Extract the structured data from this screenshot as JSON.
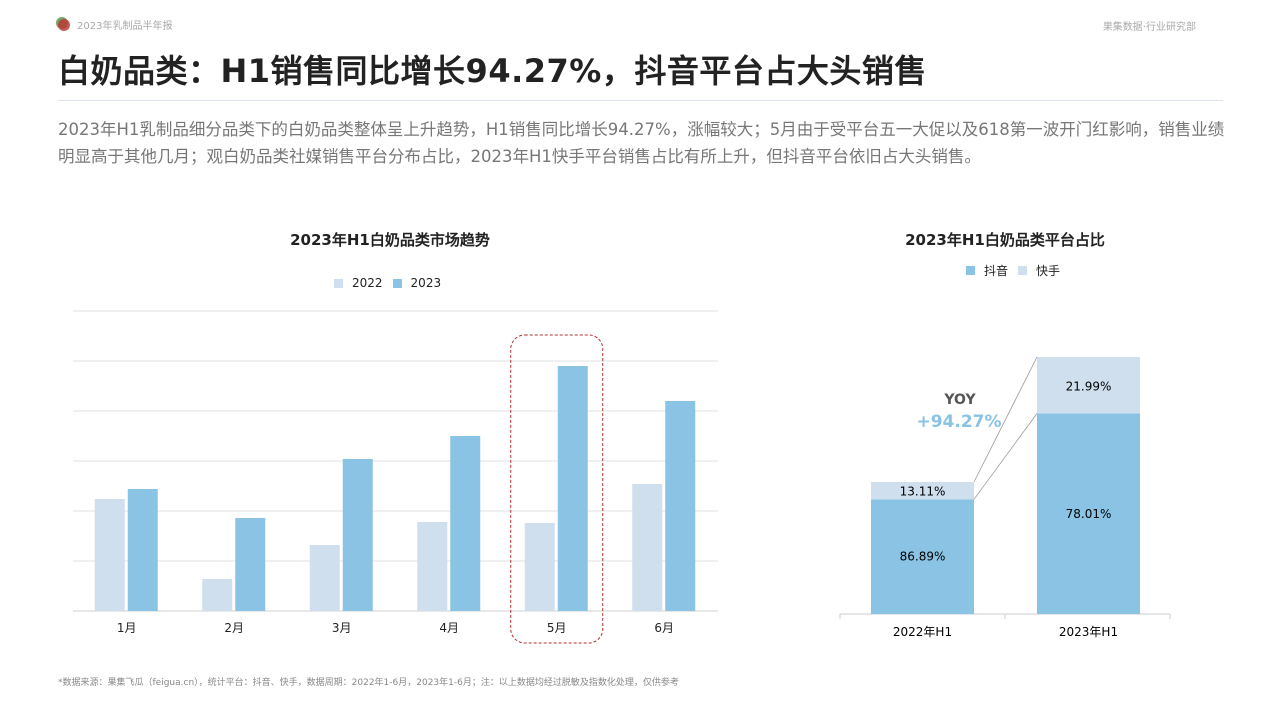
{
  "header": {
    "report": "2023年乳制品半年报",
    "source": "果集数据·行业研究部"
  },
  "title": "白奶品类：H1销售同比增长94.27%，抖音平台占大头销售",
  "description": "2023年H1乳制品细分品类下的白奶品类整体呈上升趋势，H1销售同比增长94.27%，涨幅较大；5月由于受平台五一大促以及618第一波开门红影响，销售业绩明显高于其他几月；观白奶品类社媒销售平台分布占比，2023年H1快手平台销售占比有所上升，但抖音平台依旧占大头销售。",
  "footnote": "*数据来源：果集飞瓜（feigua.cn），统计平台：抖音、快手，数据周期：2022年1-6月，2023年1-6月；注：以上数据均经过脱敏及指数化处理，仅供参考",
  "colors": {
    "light": "#cfdfee",
    "dark": "#8ac3e4",
    "highlight": "#b03030",
    "yoy": "#8ac3e4"
  },
  "chart_data": [
    {
      "type": "bar",
      "title": "2023年H1白奶品类市场趋势",
      "categories": [
        "1月",
        "2月",
        "3月",
        "4月",
        "5月",
        "6月"
      ],
      "series": [
        {
          "name": "2022",
          "values": [
            2.24,
            0.64,
            1.32,
            1.78,
            1.76,
            2.54
          ]
        },
        {
          "name": "2023",
          "values": [
            2.44,
            1.86,
            3.04,
            3.5,
            4.9,
            4.2
          ]
        }
      ],
      "ylim": [
        0,
        6
      ],
      "grid": true,
      "legend": "top",
      "highlight": "5月",
      "y_tick_labels": false
    },
    {
      "type": "bar",
      "stacked": true,
      "title": "2023年H1白奶品类平台占比",
      "categories": [
        "2022年H1",
        "2023年H1"
      ],
      "series": [
        {
          "name": "抖音",
          "values": [
            86.89,
            78.01
          ],
          "labels": [
            "86.89%",
            "78.01%"
          ]
        },
        {
          "name": "快手",
          "values": [
            13.11,
            21.99
          ],
          "labels": [
            "13.11%",
            "21.99%"
          ]
        }
      ],
      "legend": "top",
      "annotation": {
        "label": "YOY",
        "value": "+94.27%"
      },
      "relative_totals": [
        1,
        1.9427
      ]
    }
  ]
}
